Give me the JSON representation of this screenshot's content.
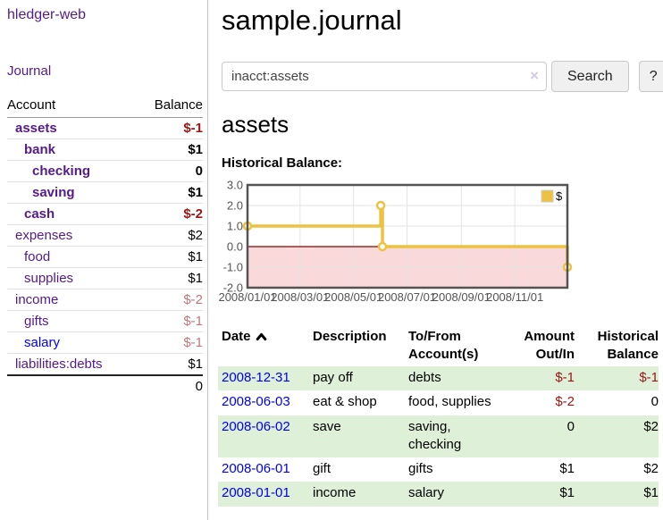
{
  "colors": {
    "link_purple": "#551a8b",
    "link_blue": "#0000ee",
    "negative_strong": "#9d1414",
    "negative_muted": "#bf7777",
    "row_green": "#dff0d8"
  },
  "sidebar": {
    "brand": "hledger-web",
    "nav_journal": "Journal",
    "accounts": {
      "header_account": "Account",
      "header_balance": "Balance",
      "rows": [
        {
          "name": "assets",
          "depth": 1,
          "bold": true,
          "balance": "$-1",
          "neg": "strong"
        },
        {
          "name": "bank",
          "depth": 2,
          "bold": true,
          "balance": "$1"
        },
        {
          "name": "checking",
          "depth": 3,
          "bold": true,
          "balance": "0"
        },
        {
          "name": "saving",
          "depth": 3,
          "bold": true,
          "balance": "$1"
        },
        {
          "name": "cash",
          "depth": 2,
          "bold": true,
          "balance": "$-2",
          "neg": "strong"
        },
        {
          "name": "expenses",
          "depth": 1,
          "bold": false,
          "balance": "$2"
        },
        {
          "name": "food",
          "depth": 2,
          "bold": false,
          "balance": "$1"
        },
        {
          "name": "supplies",
          "depth": 2,
          "bold": false,
          "balance": "$1"
        },
        {
          "name": "income",
          "depth": 1,
          "bold": false,
          "balance": "$-2",
          "neg": "muted"
        },
        {
          "name": "gifts",
          "depth": 2,
          "bold": false,
          "balance": "$-1",
          "neg": "muted"
        },
        {
          "name": "salary",
          "depth": 2,
          "bold": false,
          "balance": "$-1",
          "neg": "muted",
          "blue": true
        },
        {
          "name": "liabilities:debts",
          "depth": 1,
          "bold": false,
          "balance": "$1"
        }
      ],
      "total": "0"
    }
  },
  "main": {
    "title": "sample.journal",
    "search": {
      "value": "inacct:assets",
      "clear": "×",
      "search_button": "Search",
      "help_button": "?"
    },
    "heading": "assets",
    "section_label": "Historical Balance:"
  },
  "chart_data": {
    "type": "line",
    "step": true,
    "title": "Historical Balance:",
    "x_range": [
      "2008-01-01",
      "2008-12-31"
    ],
    "ylim": [
      -2,
      3
    ],
    "y_ticks": [
      {
        "label": "3.0",
        "value": 3
      },
      {
        "label": "2.0",
        "value": 2
      },
      {
        "label": "1.0",
        "value": 1
      },
      {
        "label": "0.0",
        "value": 0
      },
      {
        "label": "-1.0",
        "value": -1
      },
      {
        "label": "-2.0",
        "value": -2
      }
    ],
    "x_ticks": [
      {
        "label": "2008/01/01",
        "date": "2008-01-01"
      },
      {
        "label": "2008/03/01",
        "date": "2008-03-01"
      },
      {
        "label": "2008/05/01",
        "date": "2008-05-01"
      },
      {
        "label": "2008/07/01",
        "date": "2008-07-01"
      },
      {
        "label": "2008/09/01",
        "date": "2008-09-01"
      },
      {
        "label": "2008/11/01",
        "date": "2008-11-01"
      }
    ],
    "series": [
      {
        "name": "$",
        "color": "#edc240",
        "points": [
          {
            "date": "2008-01-01",
            "value": 1
          },
          {
            "date": "2008-06-01",
            "value": 2
          },
          {
            "date": "2008-06-03",
            "value": 0
          },
          {
            "date": "2008-12-31",
            "value": -1
          }
        ]
      }
    ],
    "legend": [
      {
        "label": "$",
        "color": "#edc240"
      }
    ],
    "legend_position": "top-right",
    "grid": true,
    "negative_fill": "#f9d9d9",
    "zero_line_color": "#8b0000",
    "grid_color": "#e3e3e3",
    "border_color": "#545454",
    "tick_label_color": "#545454"
  },
  "register": {
    "headers": [
      {
        "label": "Date",
        "sortable": true
      },
      {
        "label": "Description"
      },
      {
        "label": "To/From\nAccount(s)"
      },
      {
        "label": "Amount\nOut/In",
        "align": "right"
      },
      {
        "label": "Historical\nBalance",
        "align": "right"
      }
    ],
    "rows": [
      {
        "date": "2008-12-31",
        "description": "pay off",
        "accounts": "debts",
        "amount": "$-1",
        "amount_neg": true,
        "balance": "$-1",
        "balance_neg": true
      },
      {
        "date": "2008-06-03",
        "description": "eat & shop",
        "accounts": "food, supplies",
        "amount": "$-2",
        "amount_neg": true,
        "balance": "0",
        "balance_neg": false
      },
      {
        "date": "2008-06-02",
        "description": "save",
        "accounts": "saving,\nchecking",
        "amount": "0",
        "amount_neg": false,
        "balance": "$2",
        "balance_neg": false
      },
      {
        "date": "2008-06-01",
        "description": "gift",
        "accounts": "gifts",
        "amount": "$1",
        "amount_neg": false,
        "balance": "$2",
        "balance_neg": false
      },
      {
        "date": "2008-01-01",
        "description": "income",
        "accounts": "salary",
        "amount": "$1",
        "amount_neg": false,
        "balance": "$1",
        "balance_neg": false
      }
    ]
  }
}
